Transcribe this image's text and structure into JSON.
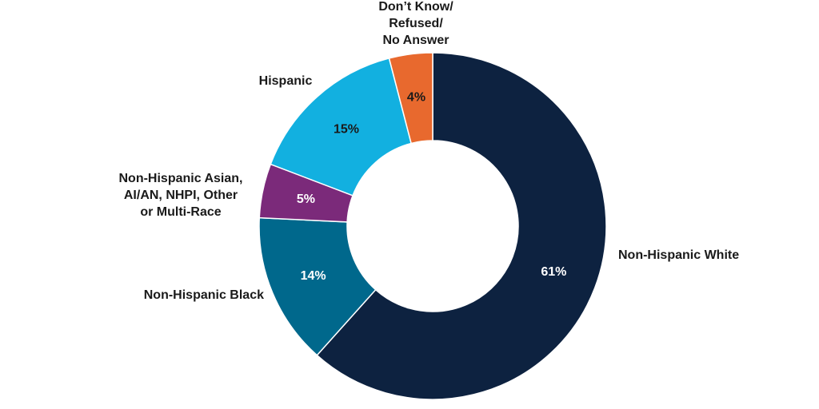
{
  "chart_data": {
    "type": "donut",
    "categories": [
      "Non-Hispanic White",
      "Non-Hispanic Black",
      "Non-Hispanic Asian,\nAI/AN, NHPI, Other\nor Multi-Race",
      "Hispanic",
      "Don’t Know/\nRefused/\nNo Answer"
    ],
    "values": [
      61,
      14,
      5,
      15,
      4
    ],
    "value_labels": [
      "61%",
      "14%",
      "5%",
      "15%",
      "4%"
    ],
    "colors": [
      "#0d2240",
      "#00688c",
      "#7b2a7a",
      "#12b0e0",
      "#e8692e"
    ]
  }
}
